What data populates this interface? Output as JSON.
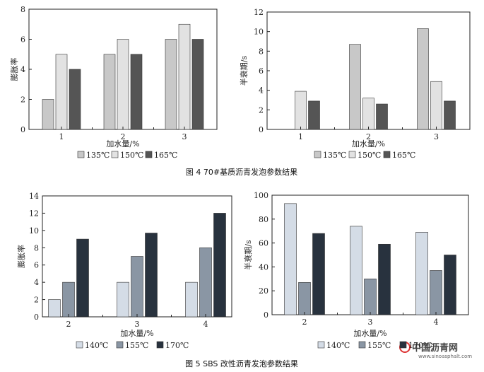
{
  "chart_data": [
    {
      "type": "bar",
      "categories": [
        "1",
        "2",
        "3"
      ],
      "series": [
        {
          "name": "135℃",
          "values": [
            2,
            5,
            6
          ]
        },
        {
          "name": "150℃",
          "values": [
            5,
            6,
            7
          ]
        },
        {
          "name": "165℃",
          "values": [
            4,
            5,
            6
          ]
        }
      ],
      "xlabel": "加水量/%",
      "ylabel": "膨胀率",
      "ylim": [
        0,
        8
      ],
      "yticks": [
        0,
        2,
        4,
        6,
        8
      ],
      "colors": [
        "#c8c8c8",
        "#e2e2e2",
        "#555555"
      ],
      "legend_placement": "bottom"
    },
    {
      "type": "bar",
      "categories": [
        "1",
        "2",
        "3"
      ],
      "series": [
        {
          "name": "135℃",
          "values": [
            0,
            8.7,
            10.3
          ]
        },
        {
          "name": "150℃",
          "values": [
            3.9,
            3.2,
            4.9
          ]
        },
        {
          "name": "165℃",
          "values": [
            2.9,
            2.6,
            2.9
          ]
        }
      ],
      "xlabel": "加水量/%",
      "ylabel": "半衰期/s",
      "ylim": [
        0,
        12
      ],
      "yticks": [
        0,
        2,
        4,
        6,
        8,
        10,
        12
      ],
      "colors": [
        "#c8c8c8",
        "#e2e2e2",
        "#555555"
      ],
      "legend_placement": "bottom"
    },
    {
      "type": "bar",
      "categories": [
        "2",
        "3",
        "4"
      ],
      "series": [
        {
          "name": "140℃",
          "values": [
            2,
            4,
            4
          ]
        },
        {
          "name": "155℃",
          "values": [
            4,
            7,
            8
          ]
        },
        {
          "name": "170℃",
          "values": [
            9,
            9.7,
            12
          ]
        }
      ],
      "xlabel": "加水量/%",
      "ylabel": "膨胀率",
      "ylim": [
        0,
        14
      ],
      "yticks": [
        0,
        2,
        4,
        6,
        8,
        10,
        12,
        14
      ],
      "colors": [
        "#d4dce6",
        "#8a96a4",
        "#28323e"
      ],
      "legend_placement": "bottom"
    },
    {
      "type": "bar",
      "categories": [
        "2",
        "3",
        "4"
      ],
      "series": [
        {
          "name": "140℃",
          "values": [
            93,
            74,
            69
          ]
        },
        {
          "name": "155℃",
          "values": [
            27,
            30,
            37
          ]
        },
        {
          "name": "170℃",
          "values": [
            68,
            59,
            50
          ]
        }
      ],
      "xlabel": "加水量/%",
      "ylabel": "半衰期/s",
      "ylim": [
        0,
        100
      ],
      "yticks": [
        0,
        20,
        40,
        60,
        80,
        100
      ],
      "colors": [
        "#d4dce6",
        "#8a96a4",
        "#28323e"
      ],
      "legend_placement": "bottom"
    }
  ],
  "captions": {
    "fig4": "图 4    70#基质沥青发泡参数结果",
    "fig5": "图 5    SBS 改性沥青发泡参数结果"
  },
  "watermark": {
    "text": "中国沥青网",
    "url": "www.sinoasphalt.com"
  }
}
